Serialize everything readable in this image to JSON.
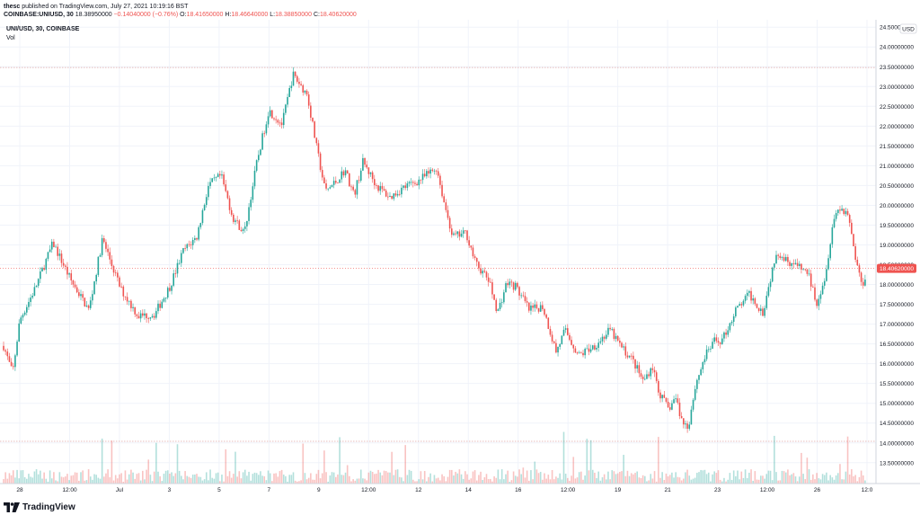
{
  "header": {
    "author": "thesc",
    "published": "published on TradingView.com, July 27, 2021 10:19:16 BST",
    "symbol": "COINBASE:UNIUSD, 30",
    "price": "18.38950000",
    "change": "−0.14040000 (−0.76%)",
    "o_label": "O:",
    "o_value": "18.41650000",
    "h_label": "H:",
    "h_value": "18.46640000",
    "l_label": "L:",
    "l_value": "18.38850000",
    "c_label": "C:",
    "c_value": "18.40620000"
  },
  "legend": {
    "series_title": "UNI/USD, 30, COINBASE",
    "volume_label": "Vol"
  },
  "footer": {
    "brand": "TradingView"
  },
  "colors": {
    "up": "#26a69a",
    "down": "#ef5350",
    "grid": "#f0f3fa",
    "price_line": "#ef5350",
    "hline": "#e0a8a8"
  },
  "chart_data": {
    "type": "candlestick",
    "currency_label": "USD",
    "ylim": [
      13.2,
      24.55
    ],
    "y_ticks": [
      "13.50000000",
      "14.00000000",
      "14.50000000",
      "15.00000000",
      "15.50000000",
      "16.00000000",
      "16.50000000",
      "17.00000000",
      "17.50000000",
      "18.00000000",
      "18.50000000",
      "19.00000000",
      "19.50000000",
      "20.00000000",
      "20.50000000",
      "21.00000000",
      "21.50000000",
      "22.00000000",
      "22.50000000",
      "23.00000000",
      "23.50000000",
      "24.00000000",
      "24.50000000"
    ],
    "x_ticks": [
      "28",
      "12:00",
      "Jul",
      "3",
      "5",
      "7",
      "9",
      "12:00",
      "12",
      "14",
      "16",
      "12:00",
      "19",
      "21",
      "23",
      "12:00",
      "26",
      "12:0"
    ],
    "last_price": 18.4062,
    "last_price_label": "18.40620000",
    "horizontal_lines": [
      23.48,
      14.04
    ],
    "anchors": [
      [
        0,
        16.45
      ],
      [
        10,
        15.75
      ],
      [
        18,
        17.1
      ],
      [
        35,
        17.9
      ],
      [
        55,
        19.05
      ],
      [
        75,
        18.1
      ],
      [
        95,
        17.35
      ],
      [
        110,
        19.15
      ],
      [
        130,
        17.9
      ],
      [
        150,
        17.2
      ],
      [
        168,
        17.25
      ],
      [
        185,
        17.95
      ],
      [
        200,
        18.85
      ],
      [
        215,
        19.2
      ],
      [
        228,
        20.5
      ],
      [
        242,
        20.75
      ],
      [
        255,
        19.7
      ],
      [
        268,
        19.3
      ],
      [
        282,
        21.1
      ],
      [
        295,
        22.4
      ],
      [
        310,
        22.05
      ],
      [
        322,
        23.3
      ],
      [
        338,
        22.8
      ],
      [
        348,
        21.5
      ],
      [
        358,
        20.35
      ],
      [
        370,
        20.6
      ],
      [
        380,
        20.9
      ],
      [
        390,
        20.25
      ],
      [
        400,
        21.1
      ],
      [
        415,
        20.5
      ],
      [
        430,
        20.2
      ],
      [
        445,
        20.45
      ],
      [
        460,
        20.6
      ],
      [
        470,
        20.75
      ],
      [
        482,
        20.95
      ],
      [
        490,
        20.1
      ],
      [
        500,
        19.2
      ],
      [
        515,
        19.3
      ],
      [
        525,
        18.55
      ],
      [
        540,
        18.1
      ],
      [
        550,
        17.3
      ],
      [
        560,
        18.05
      ],
      [
        570,
        17.95
      ],
      [
        585,
        17.35
      ],
      [
        600,
        17.45
      ],
      [
        615,
        16.3
      ],
      [
        625,
        16.85
      ],
      [
        640,
        16.2
      ],
      [
        660,
        16.5
      ],
      [
        675,
        16.85
      ],
      [
        688,
        16.4
      ],
      [
        700,
        16.1
      ],
      [
        712,
        15.55
      ],
      [
        722,
        15.95
      ],
      [
        730,
        15.25
      ],
      [
        740,
        14.85
      ],
      [
        748,
        15.15
      ],
      [
        755,
        14.55
      ],
      [
        762,
        14.4
      ],
      [
        770,
        15.45
      ],
      [
        780,
        16.15
      ],
      [
        790,
        16.55
      ],
      [
        800,
        16.6
      ],
      [
        815,
        17.35
      ],
      [
        830,
        17.75
      ],
      [
        845,
        17.3
      ],
      [
        852,
        18.0
      ],
      [
        860,
        18.85
      ],
      [
        870,
        18.65
      ],
      [
        880,
        18.5
      ],
      [
        895,
        18.3
      ],
      [
        905,
        17.55
      ],
      [
        915,
        18.25
      ],
      [
        923,
        19.6
      ],
      [
        930,
        19.95
      ],
      [
        940,
        19.8
      ],
      [
        948,
        18.7
      ],
      [
        955,
        18.0
      ],
      [
        965,
        18.41
      ]
    ]
  }
}
